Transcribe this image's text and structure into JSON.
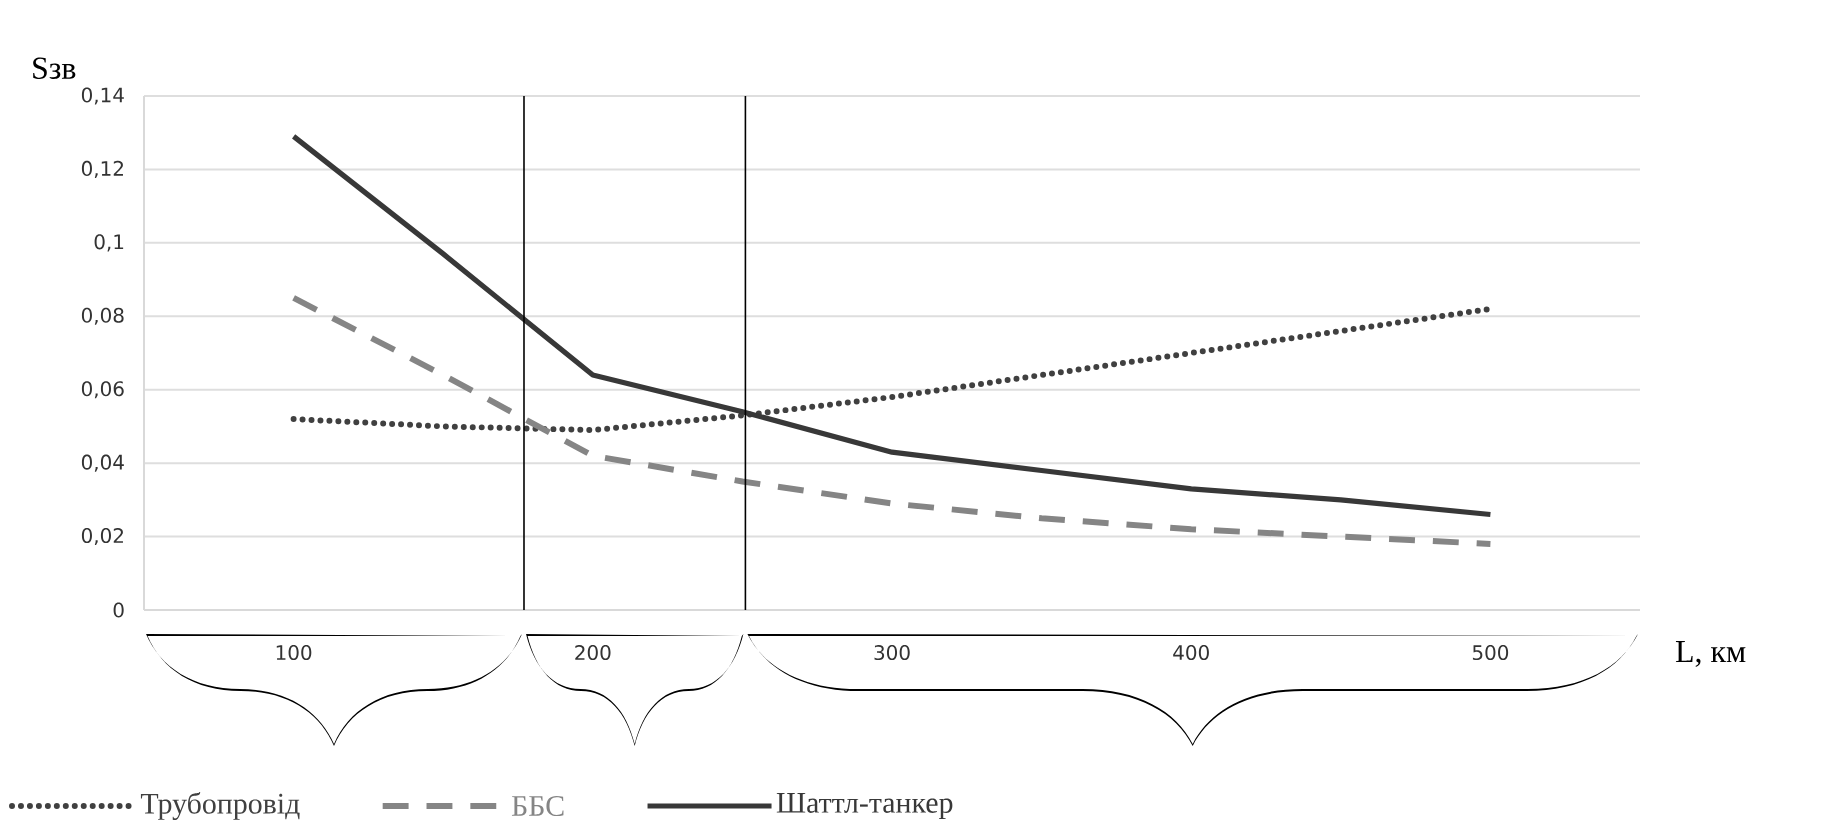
{
  "chart_data": {
    "type": "line",
    "xlabel": "L, км",
    "ylabel": "Sзв",
    "x": [
      100,
      150,
      200,
      250,
      300,
      350,
      400,
      450,
      500
    ],
    "series": [
      {
        "name": "Трубопровід",
        "color": "#404040",
        "line_style": "dotted",
        "values": [
          0.052,
          0.05,
          0.049,
          0.053,
          0.058,
          0.064,
          0.07,
          0.076,
          0.082
        ]
      },
      {
        "name": "ББС",
        "color": "#858585",
        "line_style": "dashed",
        "values": [
          0.085,
          0.064,
          0.042,
          0.035,
          0.029,
          0.025,
          0.022,
          0.02,
          0.018
        ]
      },
      {
        "name": "Шаттл-танкер",
        "color": "#383838",
        "line_style": "solid",
        "values": [
          0.129,
          0.097,
          0.064,
          0.054,
          0.043,
          0.038,
          0.033,
          0.03,
          0.026
        ]
      }
    ],
    "xlim": [
      50,
      550
    ],
    "ylim": [
      0,
      0.14
    ],
    "xticks": [
      100,
      200,
      300,
      400,
      500
    ],
    "yticks": [
      0,
      {
        "value": 0.02,
        "label": "0,02"
      },
      {
        "value": 0.04,
        "label": "0,04"
      },
      {
        "value": 0.06,
        "label": "0,06"
      },
      {
        "value": 0.08,
        "label": "0,08"
      },
      {
        "value": 0.1,
        "label": "0,1"
      },
      {
        "value": 0.12,
        "label": "0,12"
      },
      {
        "value": 0.14,
        "label": "0,14"
      }
    ],
    "ref_lines": [
      {
        "axis": "x",
        "value": 177,
        "color": "#000000"
      },
      {
        "axis": "x",
        "value": 251,
        "color": "#000000"
      }
    ],
    "grid": "y",
    "legend": "bottom",
    "marker": "none"
  }
}
